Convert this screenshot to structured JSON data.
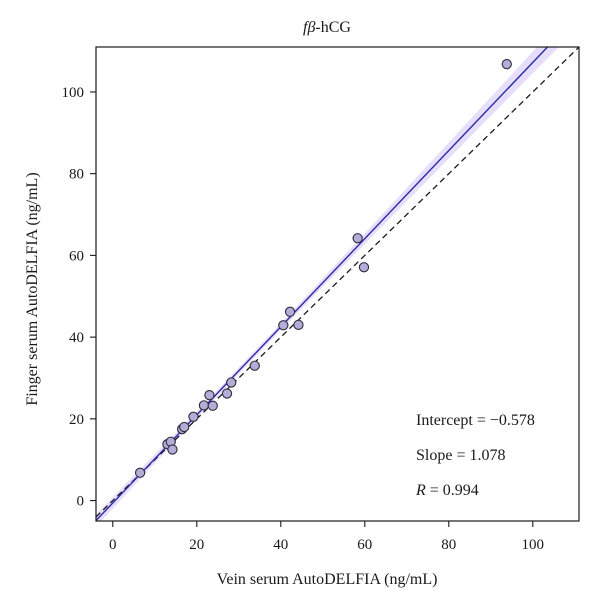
{
  "chart_data": {
    "type": "scatter",
    "title_prefix": "f",
    "title_beta": "β",
    "title_suffix": "-hCG",
    "xlabel": "Vein serum AutoDELFIA (ng/mL)",
    "ylabel": "Finger serum AutoDELFIA (ng/mL)",
    "xlim": [
      -4,
      111
    ],
    "ylim": [
      -5,
      111
    ],
    "xticks": [
      0,
      20,
      40,
      60,
      80,
      100
    ],
    "yticks": [
      0,
      20,
      40,
      60,
      80,
      100
    ],
    "points": [
      {
        "x": 6.5,
        "y": 6.8
      },
      {
        "x": 13.0,
        "y": 13.8
      },
      {
        "x": 13.8,
        "y": 14.4
      },
      {
        "x": 14.2,
        "y": 12.5
      },
      {
        "x": 16.5,
        "y": 17.5
      },
      {
        "x": 17.0,
        "y": 18.0
      },
      {
        "x": 19.2,
        "y": 20.5
      },
      {
        "x": 21.7,
        "y": 23.3
      },
      {
        "x": 23.0,
        "y": 25.8
      },
      {
        "x": 23.8,
        "y": 23.2
      },
      {
        "x": 27.2,
        "y": 26.2
      },
      {
        "x": 28.2,
        "y": 28.9
      },
      {
        "x": 33.8,
        "y": 33.0
      },
      {
        "x": 40.6,
        "y": 42.9
      },
      {
        "x": 42.2,
        "y": 46.2
      },
      {
        "x": 44.2,
        "y": 43.0
      },
      {
        "x": 58.3,
        "y": 64.2
      },
      {
        "x": 59.8,
        "y": 57.1
      },
      {
        "x": 93.8,
        "y": 106.8
      }
    ],
    "regression": {
      "intercept": -0.578,
      "slope": 1.078
    },
    "identity_line": true,
    "confidence_band": true,
    "grid": false,
    "colors": {
      "regression": "#2a2aa8",
      "band": "#e7defb",
      "identity": "#1a1a1a",
      "marker_fill": "#b5acd8",
      "marker_stroke": "#2b2b3b"
    },
    "stats": {
      "intercept_label": "Intercept = −0.578",
      "slope_label": "Slope = 1.078",
      "r_symbol": "R",
      "r_rest": " = 0.994"
    }
  }
}
